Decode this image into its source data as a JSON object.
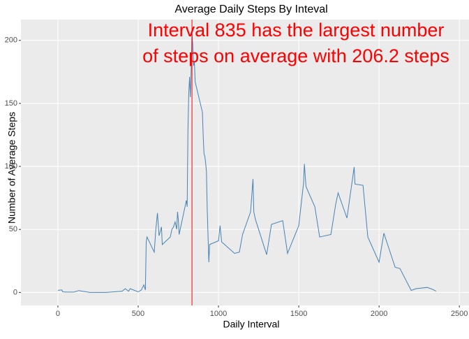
{
  "chart_data": {
    "type": "line",
    "title": "Average Daily Steps By Inteval",
    "x_label": "Daily Interval",
    "y_label": "Number of Average Steps",
    "annotation": [
      "Interval 835 has the largest number",
      "of steps on average with 206.2 steps"
    ],
    "annotation_color": "#ff0000",
    "vline": 835,
    "vline_color": "#ff0000",
    "xlim": [
      -230,
      2560
    ],
    "ylim": [
      -10.31,
      216.51
    ],
    "xticks": [
      0,
      500,
      1000,
      1500,
      2000,
      2500
    ],
    "yticks": [
      0,
      50,
      100,
      150,
      200
    ],
    "grid": true,
    "x": [
      0,
      25,
      30,
      50,
      100,
      130,
      200,
      300,
      400,
      420,
      440,
      450,
      500,
      520,
      535,
      545,
      550,
      555,
      600,
      610,
      620,
      630,
      645,
      650,
      700,
      710,
      720,
      730,
      740,
      745,
      750,
      755,
      800,
      805,
      810,
      815,
      820,
      825,
      830,
      835,
      840,
      845,
      850,
      855,
      900,
      905,
      910,
      915,
      920,
      925,
      930,
      940,
      945,
      1000,
      1010,
      1020,
      1030,
      1100,
      1130,
      1150,
      1200,
      1215,
      1220,
      1230,
      1300,
      1330,
      1400,
      1430,
      1500,
      1530,
      1535,
      1545,
      1600,
      1630,
      1700,
      1730,
      1745,
      1800,
      1830,
      1845,
      1850,
      1900,
      1930,
      2000,
      2030,
      2100,
      2130,
      2200,
      2230,
      2300,
      2330,
      2355
    ],
    "series": [
      {
        "color": "#4682b4",
        "values": [
          1.7,
          2,
          0.5,
          0.3,
          0.3,
          1.5,
          0,
          0,
          1,
          3,
          1,
          3,
          0.5,
          2,
          6,
          2,
          40,
          44,
          32,
          50,
          63,
          45,
          52,
          38,
          44,
          50,
          52,
          56,
          50,
          64,
          58,
          46,
          73,
          68,
          129,
          158,
          171,
          155,
          177,
          206.2,
          196,
          180,
          183,
          167,
          143,
          124,
          110,
          108,
          103,
          96,
          66,
          24,
          38,
          41,
          53,
          40,
          39,
          31,
          32,
          46,
          64,
          90,
          64,
          58,
          30,
          54,
          57,
          31,
          53,
          87,
          102,
          84,
          68,
          44,
          46,
          70,
          79,
          59,
          86,
          99.5,
          86,
          85,
          44,
          24,
          47,
          20,
          19,
          1.6,
          3,
          4,
          2.6,
          1.1
        ]
      }
    ]
  }
}
